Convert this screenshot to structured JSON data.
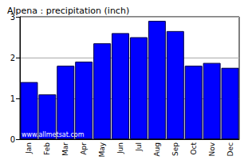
{
  "chart_data": {
    "type": "bar",
    "title": "Alpena : precipitation (inch)",
    "categories": [
      "Jan",
      "Feb",
      "Mar",
      "Apr",
      "May",
      "Jun",
      "Jul",
      "Aug",
      "Sep",
      "Oct",
      "Nov",
      "Dec"
    ],
    "values": [
      1.4,
      1.1,
      1.8,
      1.9,
      2.35,
      2.6,
      2.5,
      2.9,
      2.65,
      1.8,
      1.87,
      1.75
    ],
    "color": "#0000ff",
    "ylim": [
      0,
      3
    ],
    "yticks": [
      0,
      1,
      2,
      3
    ],
    "grid": true,
    "annotations": [
      "www.allmetsat.com"
    ]
  }
}
